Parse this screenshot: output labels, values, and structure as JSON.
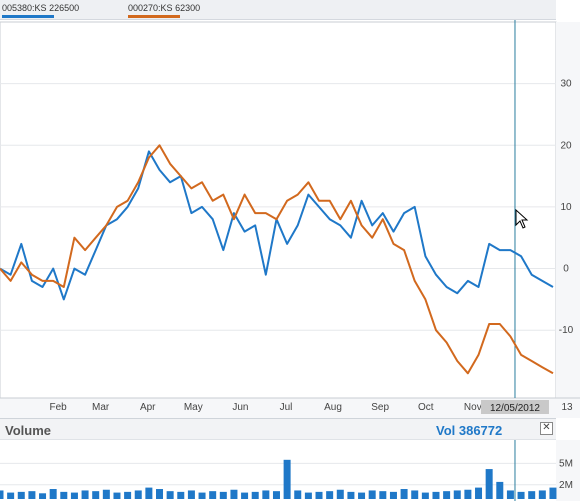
{
  "legend": [
    {
      "label": "005380:KS",
      "value": "226500",
      "color": "#1f78c8"
    },
    {
      "label": "000270:KS",
      "value": "62300",
      "color": "#d2691e"
    }
  ],
  "date_marker": "12/05/2012",
  "volume_panel": {
    "title": "Volume",
    "value": "Vol 386772",
    "close_glyph": "✕"
  },
  "chart_data": [
    {
      "type": "line",
      "y_axis_side": "right",
      "ylim": [
        -21,
        40
      ],
      "y_ticks": [
        -10,
        0,
        10,
        20,
        30
      ],
      "x_labels": [
        "Feb",
        "Mar",
        "Apr",
        "May",
        "Jun",
        "Jul",
        "Aug",
        "Sep",
        "Oct",
        "Nov",
        "13"
      ],
      "x_label_days": [
        31,
        59,
        90,
        120,
        151,
        181,
        212,
        243,
        273,
        304,
        366
      ],
      "x_range_days": [
        0,
        366
      ],
      "crosshair_day": 339,
      "grid": "horizontal",
      "series": [
        {
          "name": "005380:KS",
          "color": "#1f78c8",
          "x": [
            0,
            7,
            14,
            21,
            28,
            35,
            42,
            49,
            56,
            63,
            70,
            77,
            84,
            91,
            98,
            105,
            112,
            119,
            126,
            133,
            140,
            147,
            154,
            161,
            168,
            175,
            182,
            189,
            196,
            203,
            210,
            217,
            224,
            231,
            238,
            245,
            252,
            259,
            266,
            273,
            280,
            287,
            294,
            301,
            308,
            315,
            322,
            329,
            336,
            343,
            350,
            357,
            364
          ],
          "y": [
            0,
            -1,
            4,
            -2,
            -3,
            0,
            -5,
            0,
            -1,
            3,
            7,
            8,
            10,
            13,
            19,
            16,
            14,
            15,
            9,
            10,
            8,
            3,
            9,
            6,
            7,
            -1,
            8,
            4,
            7,
            12,
            10,
            8,
            7,
            5,
            11,
            7,
            9,
            6,
            9,
            10,
            2,
            -1,
            -3,
            -4,
            -2,
            -3,
            4,
            3,
            3,
            2,
            -1,
            -2,
            -3
          ]
        },
        {
          "name": "000270:KS",
          "color": "#d2691e",
          "x": [
            0,
            7,
            14,
            21,
            28,
            35,
            42,
            49,
            56,
            63,
            70,
            77,
            84,
            91,
            98,
            105,
            112,
            119,
            126,
            133,
            140,
            147,
            154,
            161,
            168,
            175,
            182,
            189,
            196,
            203,
            210,
            217,
            224,
            231,
            238,
            245,
            252,
            259,
            266,
            273,
            280,
            287,
            294,
            301,
            308,
            315,
            322,
            329,
            336,
            343,
            350,
            357,
            364
          ],
          "y": [
            0,
            -2,
            1,
            -1,
            -2,
            -2,
            -3,
            5,
            3,
            5,
            7,
            10,
            11,
            14,
            18,
            20,
            17,
            15,
            13,
            14,
            11,
            12,
            8,
            12,
            9,
            9,
            8,
            11,
            12,
            14,
            11,
            11,
            8,
            11,
            7,
            5,
            8,
            4,
            3,
            -2,
            -5,
            -10,
            -12,
            -15,
            -17,
            -14,
            -9,
            -9,
            -11,
            -14,
            -15,
            -16,
            -17
          ]
        }
      ]
    },
    {
      "type": "bar",
      "y_axis_side": "right",
      "ylim": [
        0,
        8
      ],
      "y_ticks": [
        2,
        5
      ],
      "y_tick_labels": [
        "2M",
        "5M"
      ],
      "x": [
        0,
        7,
        14,
        21,
        28,
        35,
        42,
        49,
        56,
        63,
        70,
        77,
        84,
        91,
        98,
        105,
        112,
        119,
        126,
        133,
        140,
        147,
        154,
        161,
        168,
        175,
        182,
        189,
        196,
        203,
        210,
        217,
        224,
        231,
        238,
        245,
        252,
        259,
        266,
        273,
        280,
        287,
        294,
        301,
        308,
        315,
        322,
        329,
        336,
        343,
        350,
        357,
        364
      ],
      "values": [
        1.2,
        0.9,
        1.0,
        1.1,
        0.8,
        1.4,
        1.0,
        0.9,
        1.2,
        1.1,
        1.3,
        0.9,
        1.0,
        1.2,
        1.6,
        1.4,
        1.1,
        1.0,
        1.2,
        0.9,
        1.1,
        1.0,
        1.3,
        0.9,
        1.0,
        1.2,
        1.1,
        5.5,
        1.2,
        0.9,
        1.0,
        1.1,
        1.3,
        1.0,
        0.9,
        1.2,
        1.1,
        1.0,
        1.4,
        1.2,
        0.9,
        1.0,
        1.1,
        1.2,
        1.3,
        1.6,
        4.2,
        2.4,
        1.2,
        1.0,
        1.1,
        1.2,
        1.6
      ],
      "color": "#1f78c8"
    }
  ]
}
